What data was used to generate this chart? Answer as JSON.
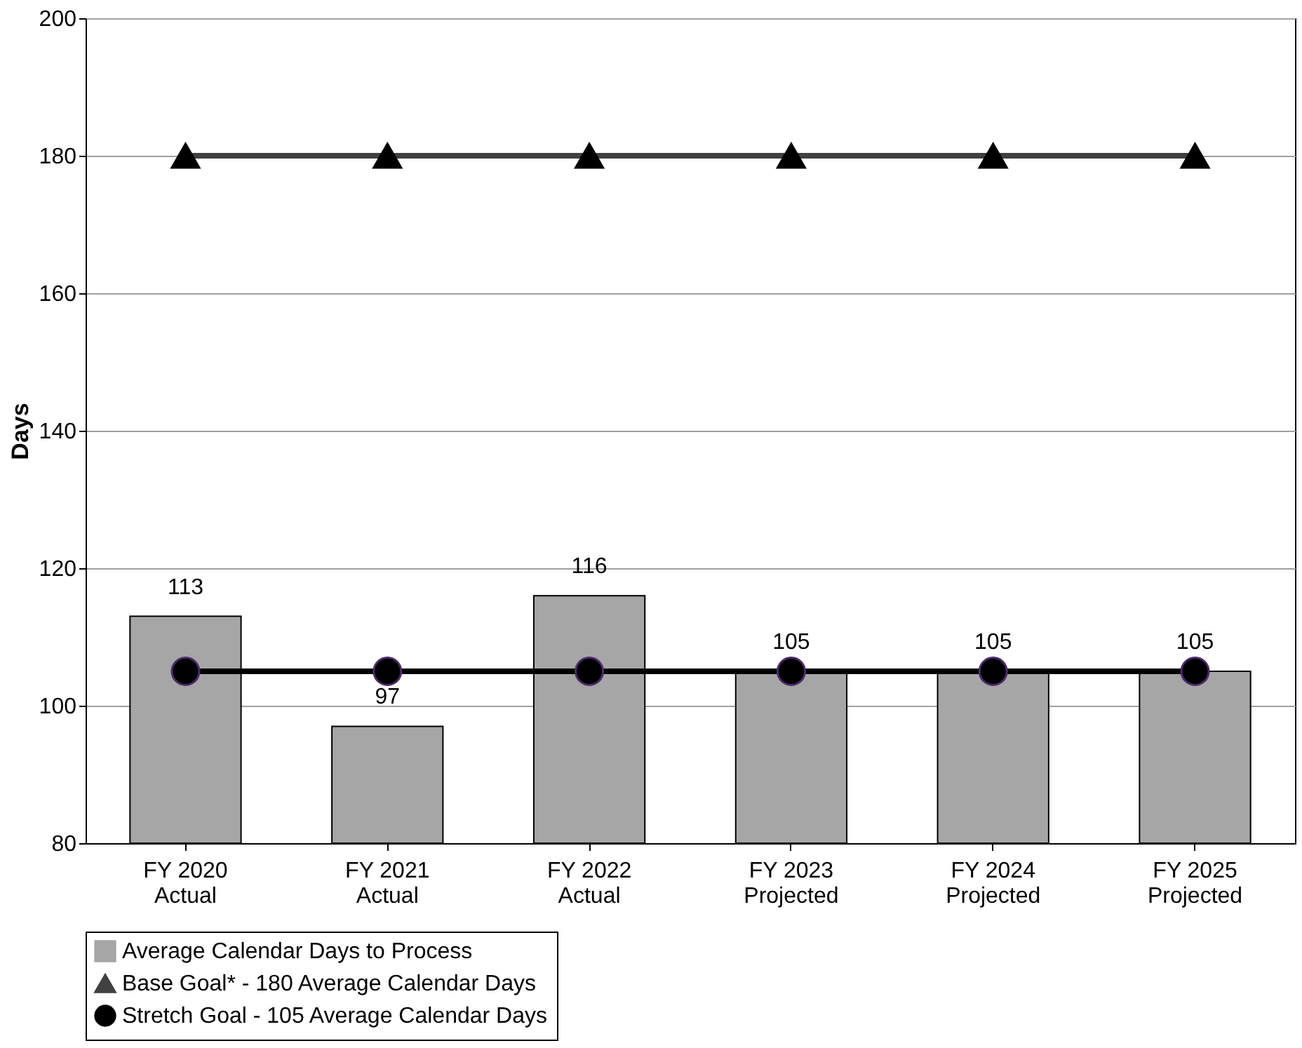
{
  "chart_data": {
    "type": "bar",
    "ylabel": "Days",
    "categories": [
      "FY 2020\nActual",
      "FY 2021\nActual",
      "FY 2022\nActual",
      "FY 2023\nProjected",
      "FY 2024\nProjected",
      "FY 2025\nProjected"
    ],
    "series": [
      {
        "name": "Average Calendar Days to Process",
        "color": "#a6a6a6",
        "values": [
          113,
          97,
          116,
          105,
          105,
          105
        ],
        "value_labels": [
          "113",
          "97",
          "116",
          "105",
          "105",
          "105"
        ]
      },
      {
        "name": "Base Goal* - 180 Average Calendar Days",
        "type": "line",
        "color": "#404040",
        "marker": "triangle",
        "values": [
          180,
          180,
          180,
          180,
          180,
          180
        ]
      },
      {
        "name": "Stretch Goal - 105 Average Calendar Days",
        "type": "line",
        "color": "#000000",
        "marker": "circle",
        "values": [
          105,
          105,
          105,
          105,
          105,
          105
        ]
      }
    ],
    "ylim": [
      80,
      200
    ],
    "yticks": [
      80,
      100,
      120,
      140,
      160,
      180,
      200
    ],
    "grid": "y",
    "legend": "bottom"
  }
}
